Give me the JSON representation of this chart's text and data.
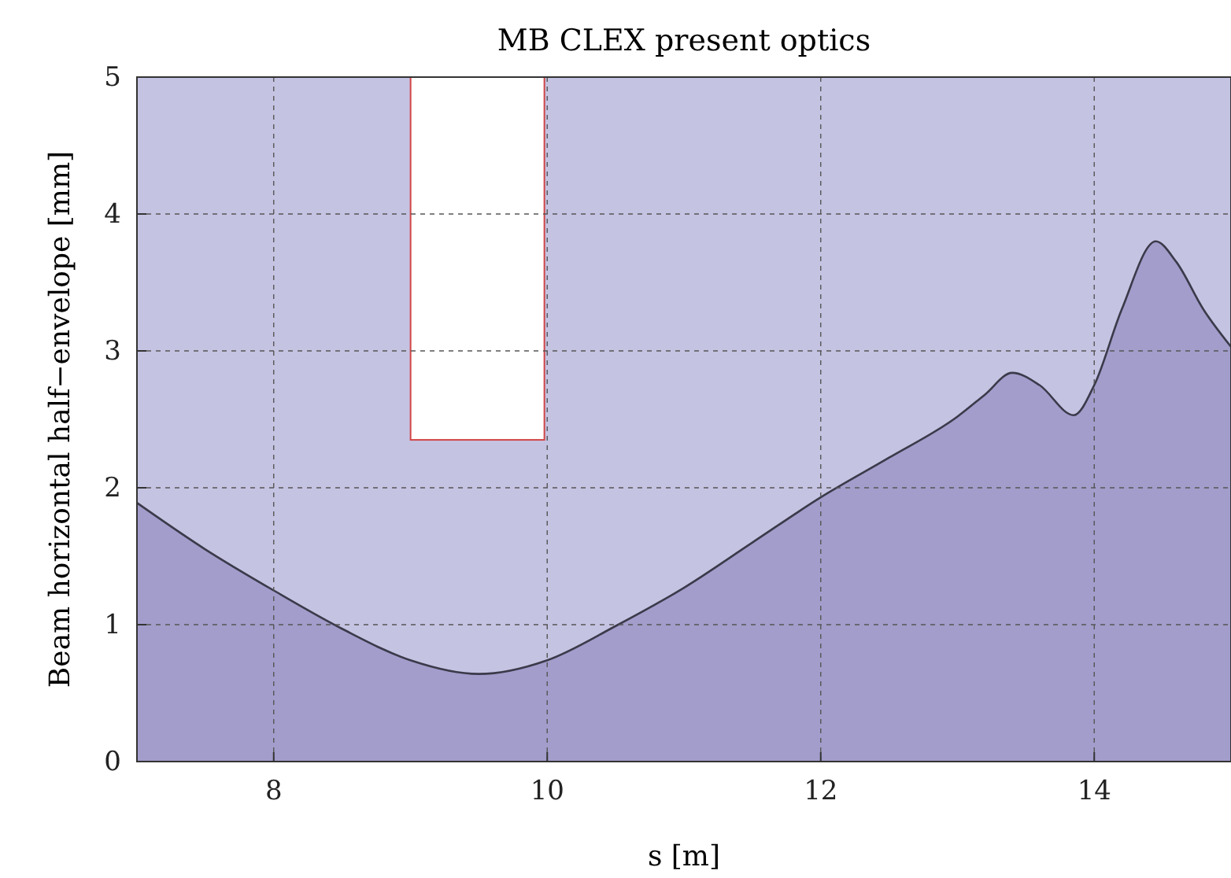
{
  "chart_data": {
    "type": "area",
    "title": "MB CLEX present optics",
    "xlabel": "s [m]",
    "ylabel": "Beam horizontal half−envelope [mm]",
    "xlim": [
      7,
      15
    ],
    "ylim": [
      0,
      5
    ],
    "xticks": [
      8,
      10,
      12,
      14
    ],
    "yticks": [
      0,
      1,
      2,
      3,
      4,
      5
    ],
    "grid": true,
    "series": [
      {
        "color": "#a29dcb",
        "x": [
          7,
          7.5,
          8,
          8.5,
          9,
          9.5,
          10,
          10.5,
          11,
          11.5,
          12,
          12.5,
          13,
          13.2,
          13.4,
          13.6,
          13.85,
          14,
          14.2,
          14.45,
          14.6,
          14.8,
          15
        ],
        "values": [
          1.89,
          1.55,
          1.25,
          0.97,
          0.74,
          0.64,
          0.74,
          0.99,
          1.27,
          1.6,
          1.93,
          2.22,
          2.52,
          2.68,
          2.84,
          2.75,
          2.53,
          2.75,
          3.3,
          3.8,
          3.65,
          3.3,
          3.03
        ]
      },
      {
        "type": "bar",
        "color": "#ffffff",
        "x": [
          9.49
        ],
        "base": [
          2.35
        ],
        "values": [
          2.65
        ]
      }
    ]
  }
}
